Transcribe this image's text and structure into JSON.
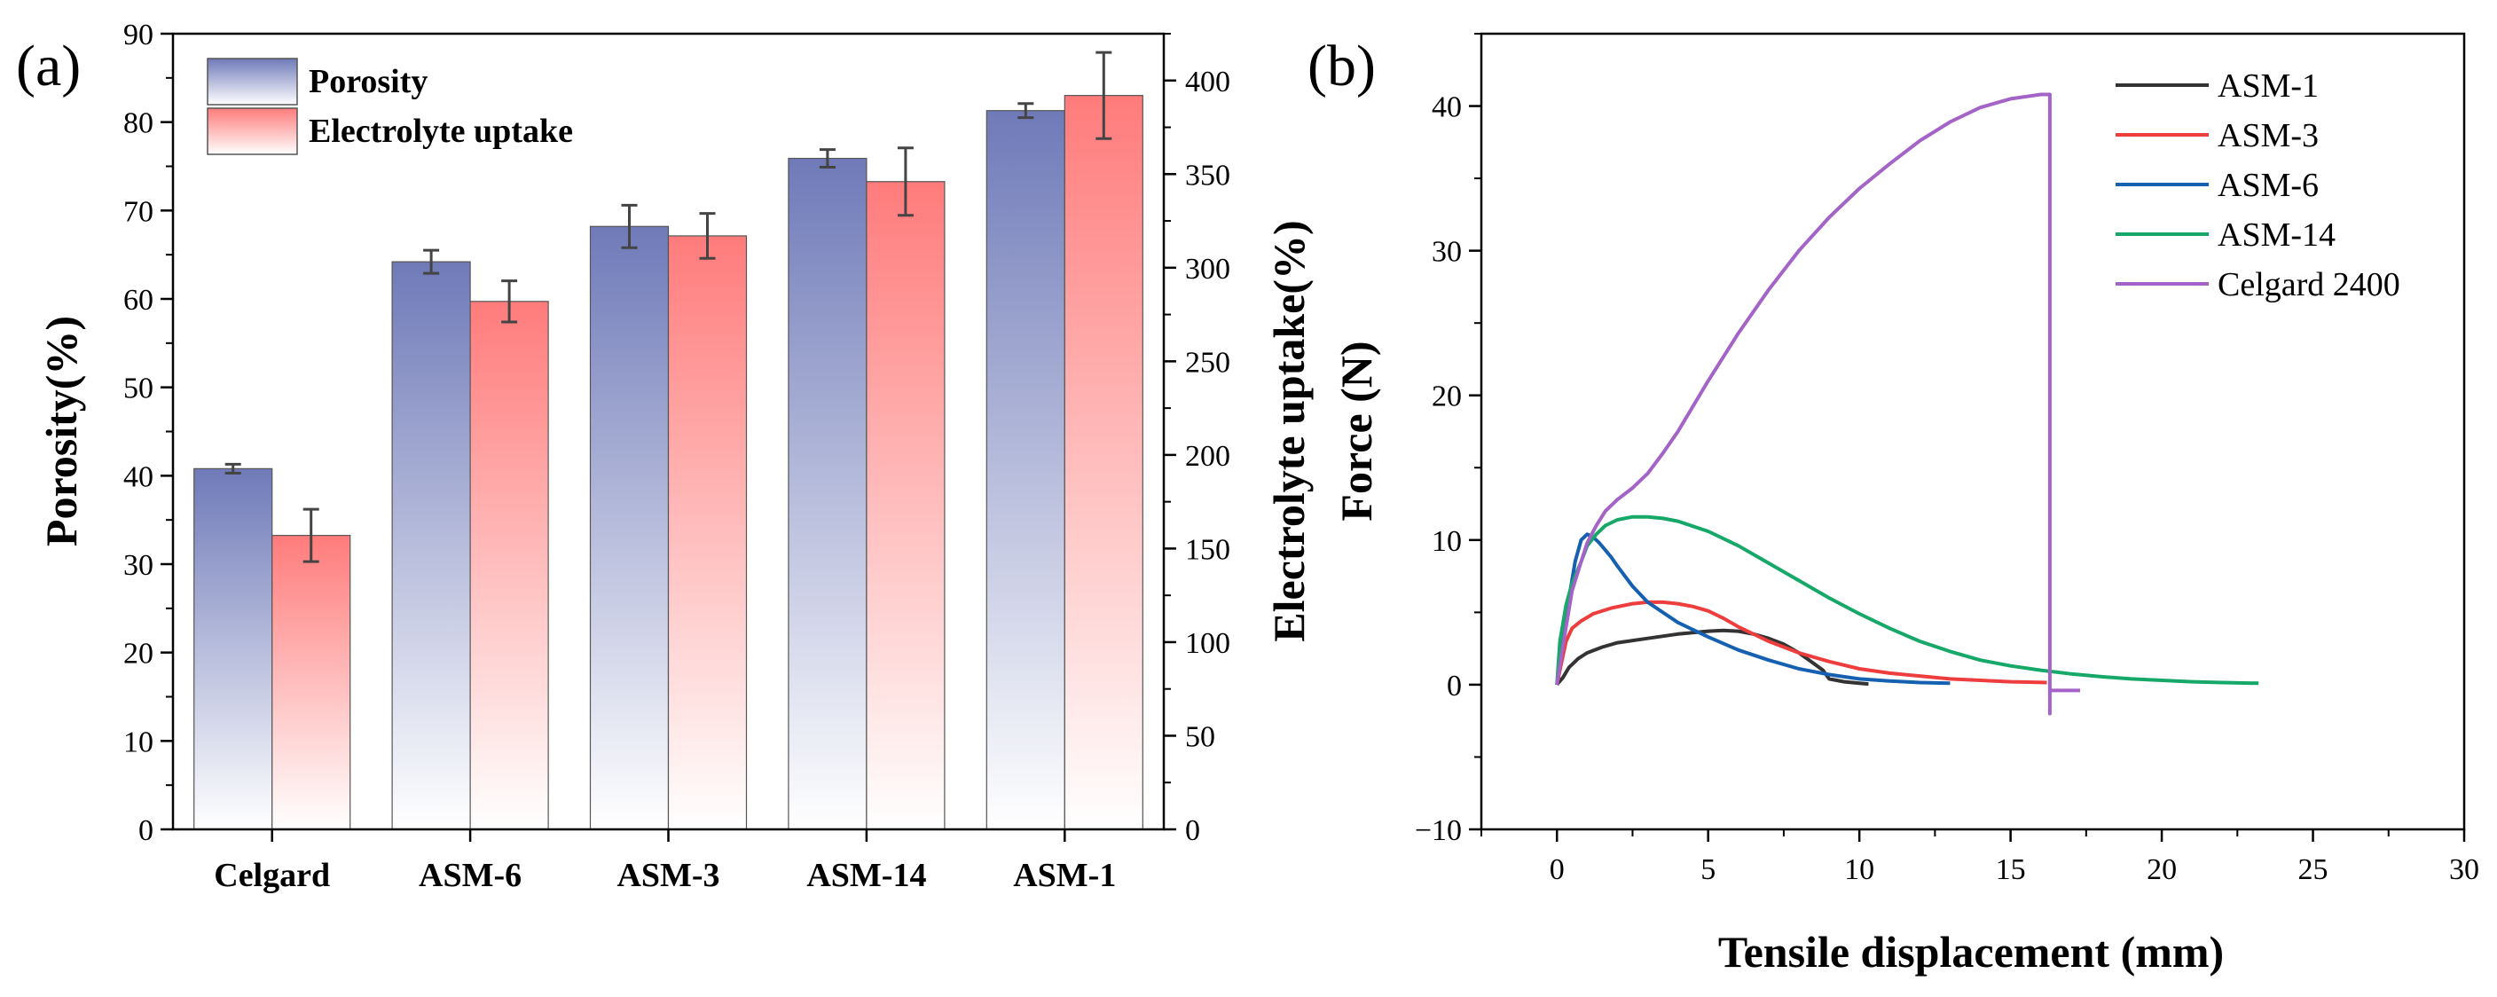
{
  "chart_data": [
    {
      "type": "bar",
      "panel_label": "(a)",
      "categories": [
        "Celgard",
        "ASM-6",
        "ASM-3",
        "ASM-14",
        "ASM-1"
      ],
      "series": [
        {
          "name": "Porosity",
          "axis": "left",
          "values": [
            40.8,
            64.2,
            68.2,
            75.9,
            81.3
          ],
          "errors": [
            0.5,
            1.3,
            2.4,
            1.0,
            0.8
          ],
          "color_top": "#6f7ab8",
          "color_bottom": "#ffffff"
        },
        {
          "name": "Electrolyte uptake",
          "axis": "right",
          "values": [
            157,
            282,
            317,
            346,
            392
          ],
          "errors": [
            14,
            11,
            12,
            18,
            23
          ],
          "color_top": "#ff7b7b",
          "color_bottom": "#ffffff"
        }
      ],
      "ylabel": "Porosity(%)",
      "y2label": "Electrolyte uptake(%)",
      "ylim": [
        0,
        90
      ],
      "y2lim": [
        0,
        425
      ],
      "yticks": [
        "0",
        "10",
        "20",
        "30",
        "40",
        "50",
        "60",
        "70",
        "80",
        "90"
      ],
      "y2ticks": [
        "0",
        "50",
        "100",
        "150",
        "200",
        "250",
        "300",
        "350",
        "400"
      ],
      "legend_position": "top-left"
    },
    {
      "type": "line",
      "panel_label": "(b)",
      "xlabel": "Tensile displacement (mm)",
      "ylabel": "Force (N)",
      "xlim": [
        -2.5,
        30
      ],
      "ylim": [
        -10,
        45
      ],
      "xticks": [
        "0",
        "5",
        "10",
        "15",
        "20",
        "25",
        "30"
      ],
      "yticks": [
        "-10",
        "0",
        "10",
        "20",
        "30",
        "40"
      ],
      "legend_position": "top-right",
      "series": [
        {
          "name": "ASM-1",
          "color": "#333333",
          "x": [
            0,
            0.2,
            0.4,
            0.7,
            1,
            1.5,
            2,
            3,
            4,
            5,
            5.5,
            6,
            6.5,
            7,
            7.5,
            8,
            8.4,
            8.8,
            9.0,
            9.5,
            10,
            10.3
          ],
          "y": [
            0,
            0.5,
            1.2,
            1.8,
            2.2,
            2.6,
            2.9,
            3.2,
            3.5,
            3.7,
            3.75,
            3.7,
            3.5,
            3.2,
            2.8,
            2.2,
            1.6,
            1.0,
            0.4,
            0.2,
            0.1,
            0.05
          ]
        },
        {
          "name": "ASM-3",
          "color": "#ee3d3d",
          "x": [
            0,
            0.15,
            0.3,
            0.5,
            0.8,
            1.2,
            1.8,
            2.5,
            3,
            3.5,
            4,
            4.5,
            5,
            5.5,
            6,
            7,
            8,
            9,
            10,
            11,
            12,
            13,
            14,
            15,
            16.2
          ],
          "y": [
            0,
            1.5,
            3,
            3.9,
            4.4,
            4.9,
            5.3,
            5.6,
            5.7,
            5.7,
            5.6,
            5.4,
            5.1,
            4.6,
            4.0,
            3.0,
            2.2,
            1.6,
            1.1,
            0.8,
            0.6,
            0.4,
            0.3,
            0.2,
            0.15
          ]
        },
        {
          "name": "ASM-6",
          "color": "#1560b0",
          "x": [
            0,
            0.2,
            0.4,
            0.6,
            0.8,
            1,
            1.2,
            1.4,
            1.6,
            1.8,
            2,
            2.5,
            3,
            4,
            5,
            6,
            7,
            8,
            9,
            10,
            11,
            12,
            13
          ],
          "y": [
            0,
            3,
            6,
            8.5,
            10,
            10.4,
            10.2,
            9.8,
            9.3,
            8.8,
            8.2,
            6.8,
            5.7,
            4.3,
            3.3,
            2.4,
            1.7,
            1.1,
            0.7,
            0.4,
            0.25,
            0.15,
            0.1
          ]
        },
        {
          "name": "ASM-14",
          "color": "#16a868",
          "x": [
            0,
            0.1,
            0.3,
            0.5,
            0.8,
            1,
            1.3,
            1.6,
            2,
            2.5,
            3,
            3.5,
            4,
            5,
            6,
            7,
            8,
            9,
            10,
            11,
            12,
            13,
            14,
            15,
            16,
            17,
            18,
            19,
            20,
            21,
            22,
            23.2
          ],
          "y": [
            0,
            3,
            5.5,
            7,
            8.5,
            9.6,
            10.4,
            11,
            11.4,
            11.6,
            11.6,
            11.5,
            11.3,
            10.6,
            9.6,
            8.4,
            7.2,
            6.0,
            4.9,
            3.9,
            3.0,
            2.3,
            1.7,
            1.3,
            1.0,
            0.75,
            0.55,
            0.4,
            0.3,
            0.2,
            0.15,
            0.1
          ]
        },
        {
          "name": "Celgard 2400",
          "color": "#a463c7",
          "x": [
            0,
            0.15,
            0.3,
            0.5,
            0.8,
            1,
            1.3,
            1.6,
            2,
            2.5,
            3,
            3.5,
            4,
            5,
            6,
            7,
            8,
            9,
            10,
            11,
            12,
            13,
            14,
            15,
            16,
            16.3,
            16.3,
            16.3,
            16.5,
            17.3
          ],
          "y": [
            0,
            2,
            4,
            6.5,
            8.5,
            9.8,
            11,
            12,
            12.8,
            13.6,
            14.6,
            16,
            17.5,
            21,
            24.3,
            27.3,
            30,
            32.3,
            34.3,
            36,
            37.6,
            38.9,
            39.9,
            40.5,
            40.8,
            40.8,
            -2,
            -0.4,
            -0.4,
            -0.4
          ]
        }
      ]
    }
  ]
}
